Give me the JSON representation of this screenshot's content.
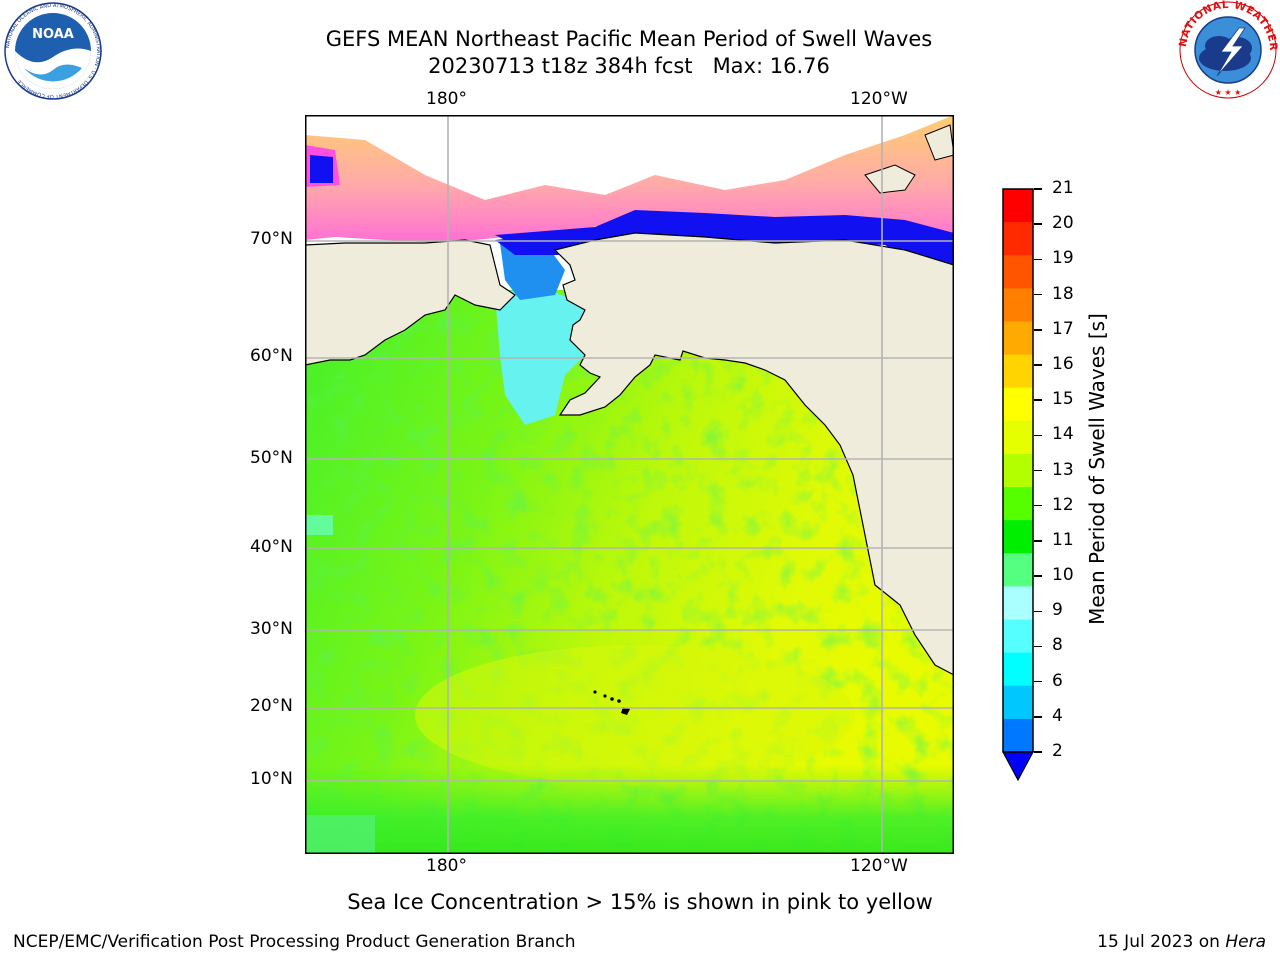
{
  "header": {
    "title_line1": "GEFS MEAN Northeast Pacific Mean Period of Swell Waves",
    "title_line2": "20230713 t18z 384h fcst   Max: 16.76"
  },
  "logos": {
    "left": "NOAA",
    "left_ring_text": "NATIONAL OCEANIC AND ATMOSPHERIC ADMINISTRATION · U.S. DEPARTMENT OF COMMERCE",
    "right_ring_text": "NATIONAL WEATHER SERVICE"
  },
  "map": {
    "lon_labels_top": [
      "180°",
      "120°W"
    ],
    "lon_labels_bottom": [
      "180°",
      "120°W"
    ],
    "lat_labels": [
      "70°N",
      "60°N",
      "50°N",
      "40°N",
      "30°N",
      "20°N",
      "10°N"
    ],
    "land_color": "#efecdc",
    "grid_color": "#b3b3b3"
  },
  "colorbar": {
    "label": "Mean Period of Swell Waves [s]",
    "ticks": [
      "21",
      "20",
      "19",
      "18",
      "17",
      "16",
      "15",
      "14",
      "13",
      "12",
      "11",
      "10",
      "9",
      "8",
      "6",
      "4",
      "2"
    ],
    "colors": [
      "#ff0000",
      "#ff2a00",
      "#ff5500",
      "#ff7f00",
      "#ffaa00",
      "#ffd400",
      "#ffff00",
      "#e6ff00",
      "#b3ff00",
      "#55ff00",
      "#00ee00",
      "#55ff80",
      "#aaffff",
      "#55ffff",
      "#00ffff",
      "#00c8ff",
      "#0078ff"
    ],
    "under_color": "#0000ff"
  },
  "caption": "Sea Ice Concentration > 15% is shown in pink to yellow",
  "footer": {
    "left": "NCEP/EMC/Verification Post Processing Product Generation Branch",
    "right_date": "15 Jul 2023 on ",
    "right_machine": "Hera"
  }
}
